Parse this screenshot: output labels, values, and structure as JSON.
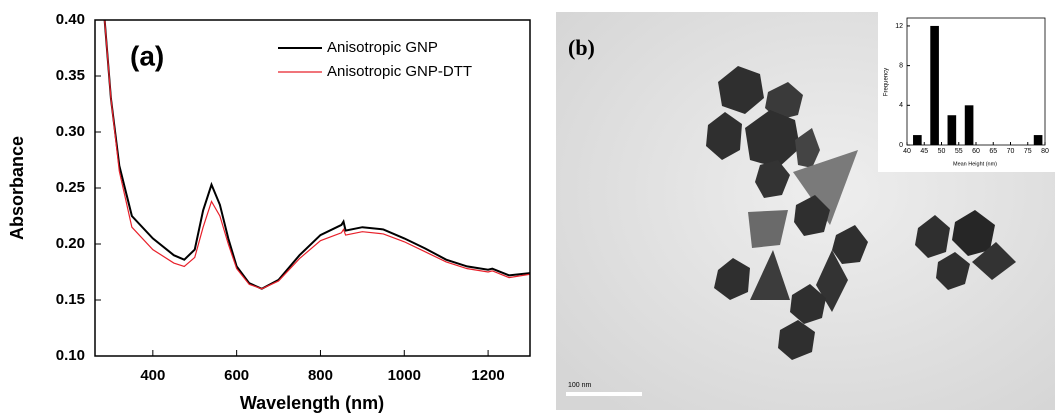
{
  "chart_data": [
    {
      "type": "line",
      "annotation": "(a)",
      "x_label": "Wavelength (nm)",
      "y_label": "Absorbance",
      "x": [
        285,
        300,
        320,
        350,
        400,
        450,
        475,
        500,
        520,
        540,
        560,
        580,
        600,
        630,
        660,
        700,
        750,
        800,
        850,
        855,
        860,
        900,
        950,
        1000,
        1050,
        1100,
        1150,
        1200,
        1210,
        1250,
        1300
      ],
      "series": [
        {
          "name": "Anisotropic GNP",
          "color": "#000000",
          "values": [
            0.4,
            0.33,
            0.27,
            0.225,
            0.205,
            0.19,
            0.186,
            0.195,
            0.23,
            0.253,
            0.235,
            0.205,
            0.18,
            0.165,
            0.16,
            0.168,
            0.19,
            0.208,
            0.217,
            0.22,
            0.212,
            0.215,
            0.213,
            0.205,
            0.196,
            0.186,
            0.18,
            0.177,
            0.178,
            0.172,
            0.174
          ]
        },
        {
          "name": "Anisotropic GNP-DTT",
          "color": "#e8202a",
          "values": [
            0.4,
            0.33,
            0.265,
            0.215,
            0.195,
            0.183,
            0.18,
            0.188,
            0.215,
            0.238,
            0.225,
            0.2,
            0.178,
            0.164,
            0.16,
            0.167,
            0.187,
            0.203,
            0.21,
            0.213,
            0.208,
            0.211,
            0.209,
            0.202,
            0.193,
            0.184,
            0.178,
            0.175,
            0.176,
            0.17,
            0.173
          ]
        }
      ],
      "xlim": [
        262,
        1300
      ],
      "ylim": [
        0.1,
        0.4
      ],
      "xticks": [
        400,
        600,
        800,
        1000,
        1200
      ],
      "yticks": [
        {
          "value": 0.1,
          "label": "0.10"
        },
        0.15,
        {
          "value": 0.2,
          "label": "0.20"
        },
        0.25,
        {
          "value": 0.3,
          "label": "0.30"
        },
        0.35,
        {
          "value": 0.4,
          "label": "0.40"
        }
      ],
      "legend": "upper right"
    },
    {
      "type": "bar",
      "annotation": "(b)",
      "scale_label": "100 nm",
      "x_label": "Mean Height (nm)",
      "y_label": "Frequency",
      "x": [
        43,
        48,
        53,
        58,
        78
      ],
      "values": [
        1,
        12,
        3,
        4,
        1
      ],
      "color": "#000000",
      "xlim": [
        40,
        80
      ],
      "ylim": [
        0,
        12.8
      ],
      "xticks": [
        40,
        45,
        50,
        55,
        60,
        65,
        70,
        75,
        80
      ],
      "yticks": [
        0,
        4,
        8,
        12
      ]
    }
  ]
}
